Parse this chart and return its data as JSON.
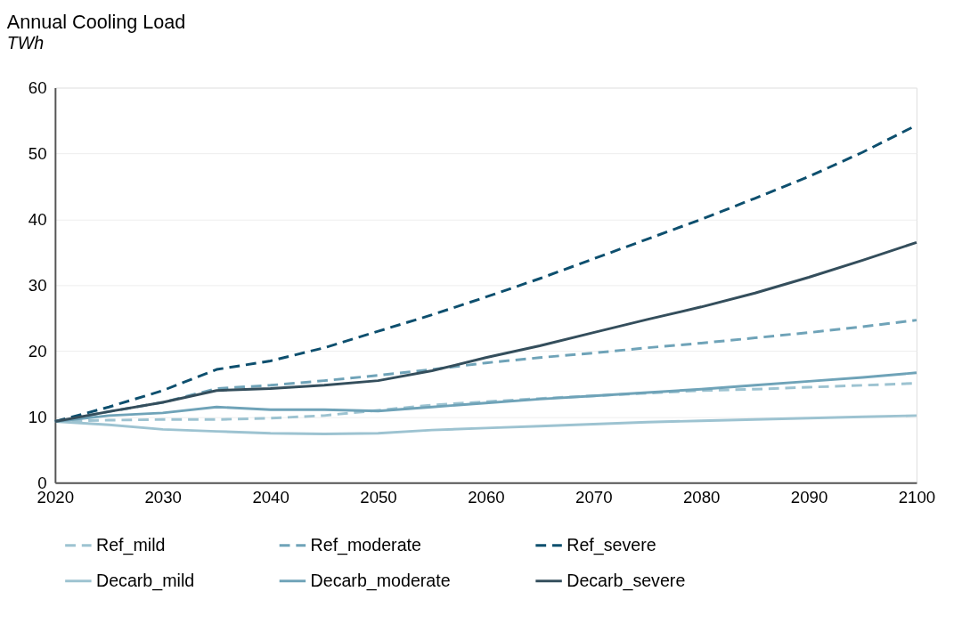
{
  "chart_data": {
    "type": "line",
    "title": "Annual Cooling Load",
    "subtitle": "TWh",
    "x": [
      2020,
      2025,
      2030,
      2035,
      2040,
      2045,
      2050,
      2055,
      2060,
      2065,
      2070,
      2075,
      2080,
      2085,
      2090,
      2095,
      2100
    ],
    "series": [
      {
        "name": "Ref_mild",
        "color": "#9dc3d1",
        "line_style": "dashed",
        "values": [
          9.3,
          9.5,
          9.6,
          9.6,
          9.8,
          10.2,
          11,
          11.8,
          12.3,
          12.8,
          13.2,
          13.6,
          14,
          14.2,
          14.5,
          14.8,
          15.1
        ]
      },
      {
        "name": "Ref_moderate",
        "color": "#6fa3b8",
        "line_style": "dashed",
        "values": [
          9.3,
          10.8,
          12.2,
          14.3,
          14.8,
          15.5,
          16.3,
          17.2,
          18.2,
          19,
          19.7,
          20.5,
          21.2,
          22,
          22.8,
          23.7,
          24.7
        ]
      },
      {
        "name": "Ref_severe",
        "color": "#0d4f6e",
        "line_style": "dashed",
        "values": [
          9.3,
          11.5,
          14,
          17.2,
          18.5,
          20.5,
          23,
          25.5,
          28.2,
          31,
          34,
          37,
          40,
          43.2,
          46.5,
          50.2,
          54.3
        ]
      },
      {
        "name": "Decarb_mild",
        "color": "#9dc3d1",
        "line_style": "solid",
        "values": [
          9.3,
          8.8,
          8.1,
          7.8,
          7.5,
          7.4,
          7.5,
          8,
          8.3,
          8.6,
          8.9,
          9.2,
          9.4,
          9.6,
          9.8,
          10,
          10.2
        ]
      },
      {
        "name": "Decarb_moderate",
        "color": "#6fa3b8",
        "line_style": "solid",
        "values": [
          9.3,
          10.2,
          10.6,
          11.5,
          11.1,
          11.1,
          10.9,
          11.5,
          12.1,
          12.7,
          13.2,
          13.7,
          14.2,
          14.8,
          15.4,
          16,
          16.7
        ]
      },
      {
        "name": "Decarb_severe",
        "color": "#344e5c",
        "line_style": "solid",
        "values": [
          9.3,
          10.8,
          12.2,
          14,
          14.3,
          14.8,
          15.5,
          17,
          19,
          20.8,
          22.8,
          24.8,
          26.7,
          28.8,
          31.2,
          33.8,
          36.5
        ]
      }
    ],
    "xlim": [
      2020,
      2100
    ],
    "xticks": [
      2020,
      2030,
      2040,
      2050,
      2060,
      2070,
      2080,
      2090,
      2100
    ],
    "ylim": [
      0,
      60
    ],
    "yticks": [
      0,
      10,
      20,
      30,
      40,
      50,
      60
    ],
    "grid": "y",
    "legend": "bottom",
    "marker": "none"
  }
}
